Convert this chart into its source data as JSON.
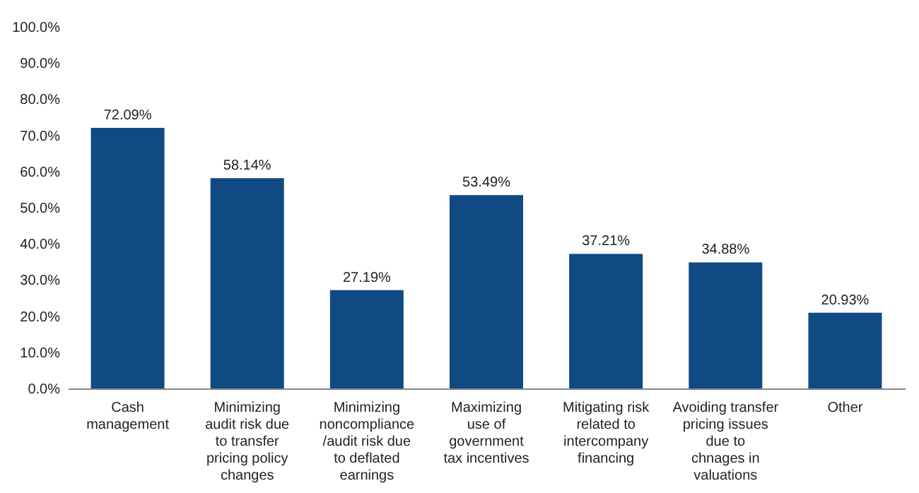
{
  "chart_data": {
    "type": "bar",
    "categories": [
      "Cash\nmanagement",
      "Minimizing\naudit risk due\nto transfer\npricing policy\nchanges",
      "Minimizing\nnoncompliance\n/audit risk due\nto deflated\nearnings",
      "Maximizing\nuse of\ngovernment\ntax incentives",
      "Mitigating risk\nrelated to\nintercompany\nfinancing",
      "Avoiding transfer\npricing issues\ndue to\nchnages in\nvaluations",
      "Other"
    ],
    "values": [
      72.09,
      58.14,
      27.19,
      53.49,
      37.21,
      34.88,
      20.93
    ],
    "value_labels": [
      "72.09%",
      "58.14%",
      "27.19%",
      "53.49%",
      "37.21%",
      "34.88%",
      "20.93%"
    ],
    "color": "#0f4a82",
    "ylim": [
      0,
      100
    ],
    "yticks": [
      {
        "value": 0,
        "label": "0.0%"
      },
      {
        "value": 10,
        "label": "10.0%"
      },
      {
        "value": 20,
        "label": "20.0%"
      },
      {
        "value": 30,
        "label": "30.0%"
      },
      {
        "value": 40,
        "label": "40.0%"
      },
      {
        "value": 50,
        "label": "50.0%"
      },
      {
        "value": 60,
        "label": "60.0%"
      },
      {
        "value": 70,
        "label": "70.0%"
      },
      {
        "value": 80,
        "label": "80.0%"
      },
      {
        "value": 90,
        "label": "90.0%"
      },
      {
        "value": 100,
        "label": "100.0%"
      }
    ]
  }
}
